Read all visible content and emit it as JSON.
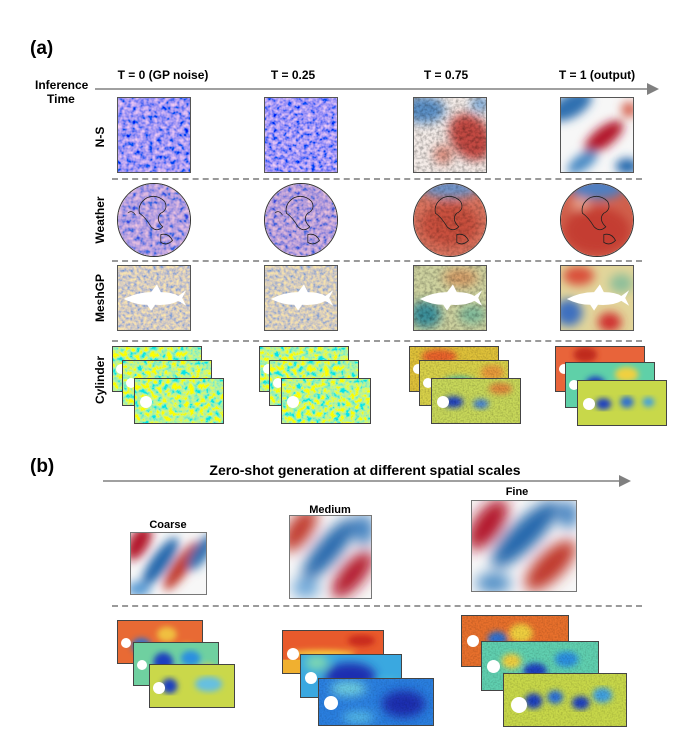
{
  "panel_a": {
    "label": "(a)",
    "axis_label_line1": "Inference",
    "axis_label_line2": "Time",
    "columns": [
      "T = 0 (GP noise)",
      "T = 0.25",
      "T = 0.75",
      "T = 1 (output)"
    ],
    "rows": [
      "N-S",
      "Weather",
      "MeshGP",
      "Cylinder"
    ]
  },
  "panel_b": {
    "label": "(b)",
    "title": "Zero-shot generation at different spatial scales",
    "scales": [
      "Coarse",
      "Medium",
      "Fine"
    ]
  },
  "colors": {
    "arrow": "#808080",
    "divider": "#9a9a9a",
    "red": "#b2182b",
    "blue": "#2166ac",
    "jet_blue": "#1f3fbf",
    "jet_red": "#d73027"
  }
}
